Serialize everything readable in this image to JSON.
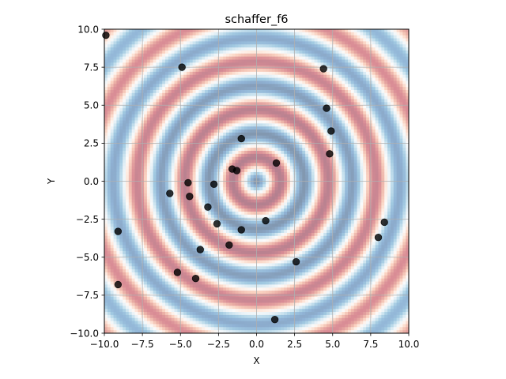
{
  "chart_data": {
    "type": "scatter",
    "title": "schaffer_f6",
    "xlabel": "X",
    "ylabel": "Y",
    "xlim": [
      -10,
      10
    ],
    "ylim": [
      -10,
      10
    ],
    "xticks": [
      "−10.0",
      "−7.5",
      "−5.0",
      "−2.5",
      "0.0",
      "2.5",
      "5.0",
      "7.5",
      "10.0"
    ],
    "yticks": [
      "−10.0",
      "−7.5",
      "−5.0",
      "−2.5",
      "0.0",
      "2.5",
      "5.0",
      "7.5",
      "10.0"
    ],
    "grid": true,
    "background": {
      "type": "heatmap",
      "function": "schaffer_f6",
      "colormap": "RdBu_r",
      "alpha": 0.5
    },
    "points": {
      "color": "#000000",
      "alpha": 0.8,
      "x": [
        -9.9,
        -4.9,
        4.4,
        4.6,
        4.9,
        4.8,
        -1.0,
        1.3,
        -1.6,
        -1.3,
        -4.5,
        -2.8,
        -5.7,
        -4.4,
        -3.2,
        -2.6,
        0.6,
        -9.1,
        -1.0,
        -3.7,
        -1.8,
        2.6,
        -5.2,
        -4.0,
        -9.1,
        8.4,
        8.0,
        1.2
      ],
      "y": [
        9.6,
        7.5,
        7.4,
        4.8,
        3.3,
        1.8,
        2.8,
        1.2,
        0.8,
        0.7,
        -0.1,
        -0.2,
        -0.8,
        -1.0,
        -1.7,
        -2.8,
        -2.6,
        -3.3,
        -3.2,
        -4.5,
        -4.2,
        -5.3,
        -6.0,
        -6.4,
        -6.8,
        -2.7,
        -3.7,
        -9.1
      ]
    }
  }
}
